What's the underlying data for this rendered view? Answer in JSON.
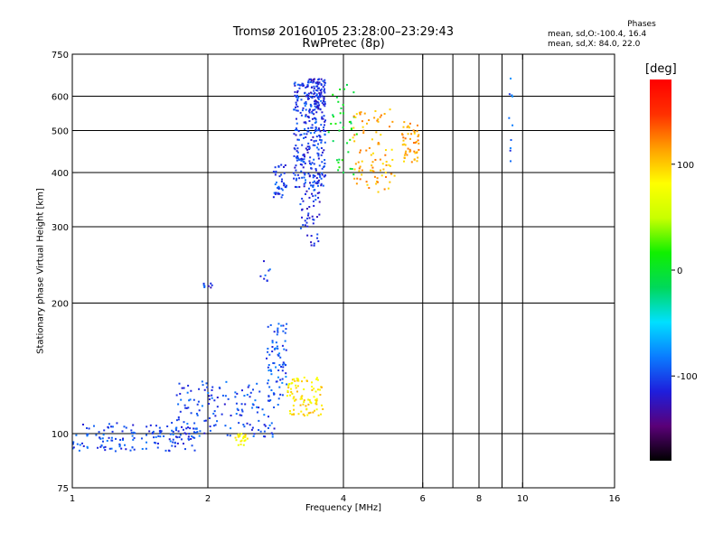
{
  "header": {
    "title_line1": "Tromsø 20160105 23:28:00–23:29:43",
    "title_line2": "RwPretec (8p)",
    "phase_title": "Phases",
    "phase_o": "mean, sd,O:-100.4, 16.4",
    "phase_x": "mean, sd,X:  84.0, 22.0"
  },
  "colorbar": {
    "unit": "[deg]",
    "ticks": [
      100,
      0,
      -100
    ],
    "tick_labels": [
      "100",
      "0",
      "-100"
    ],
    "range": [
      -180,
      180
    ],
    "colors": [
      "#000000",
      "#5a0078",
      "#1e1edc",
      "#0a7cff",
      "#00e0ff",
      "#00d85a",
      "#10f000",
      "#c8ff00",
      "#ffff00",
      "#ffa000",
      "#ff3000",
      "#ff0000"
    ]
  },
  "chart_data": {
    "type": "scatter",
    "title": "Tromsø 20160105 23:28:00–23:29:43",
    "subtitle": "RwPretec (8p)",
    "xlabel": "Frequency [MHz]",
    "ylabel": "Stationary phase Virtual Height [km]",
    "x_scale": "log",
    "y_scale": "log",
    "xlim": [
      1,
      16
    ],
    "ylim": [
      75,
      750
    ],
    "xticks": [
      1,
      2,
      4,
      6,
      8,
      10,
      16
    ],
    "xtick_labels": [
      "1",
      "2",
      "4",
      "6",
      "8",
      "10",
      "16"
    ],
    "x_gridlines": [
      2,
      4,
      6,
      7,
      8,
      9,
      10
    ],
    "yticks": [
      75,
      100,
      200,
      300,
      400,
      500,
      600,
      750
    ],
    "ytick_labels": [
      "75",
      "100",
      "200",
      "300",
      "400",
      "500",
      "600",
      "750"
    ],
    "y_gridlines": [
      100,
      200,
      300,
      400,
      500,
      600
    ],
    "grid": true,
    "color_variable": "phase [deg]",
    "clusters": [
      {
        "x": [
          1.0,
          1.9
        ],
        "y": [
          91,
          106
        ],
        "phase": -100,
        "count": 150
      },
      {
        "x": [
          1.7,
          2.9
        ],
        "y": [
          98,
          132
        ],
        "phase": -100,
        "count": 150
      },
      {
        "x": [
          2.7,
          3.0
        ],
        "y": [
          120,
          182
        ],
        "phase": -95,
        "count": 70
      },
      {
        "x": [
          3.0,
          3.6
        ],
        "y": [
          110,
          135
        ],
        "phase": 90,
        "count": 90
      },
      {
        "x": [
          2.3,
          2.45
        ],
        "y": [
          94,
          100
        ],
        "phase": 80,
        "count": 25
      },
      {
        "x": [
          2.8,
          3.0
        ],
        "y": [
          350,
          420
        ],
        "phase": -100,
        "count": 40
      },
      {
        "x": [
          3.1,
          3.65
        ],
        "y": [
          370,
          650
        ],
        "phase": -105,
        "count": 320
      },
      {
        "x": [
          3.2,
          3.55
        ],
        "y": [
          270,
          370
        ],
        "phase": -110,
        "count": 50
      },
      {
        "x": [
          3.3,
          3.65
        ],
        "y": [
          560,
          660
        ],
        "phase": -110,
        "count": 60
      },
      {
        "x": [
          3.7,
          4.3
        ],
        "y": [
          390,
          640
        ],
        "phase": 0,
        "count": 40
      },
      {
        "x": [
          4.2,
          5.2
        ],
        "y": [
          360,
          560
        ],
        "phase": 110,
        "count": 90
      },
      {
        "x": [
          5.4,
          5.9
        ],
        "y": [
          420,
          530
        ],
        "phase": 110,
        "count": 50
      },
      {
        "x": [
          1.95,
          2.05
        ],
        "y": [
          215,
          222
        ],
        "phase": -110,
        "count": 8
      },
      {
        "x": [
          2.6,
          2.75
        ],
        "y": [
          225,
          250
        ],
        "phase": -100,
        "count": 8
      },
      {
        "x": [
          9.3,
          9.5
        ],
        "y": [
          390,
          660
        ],
        "phase": -90,
        "count": 10
      }
    ]
  }
}
